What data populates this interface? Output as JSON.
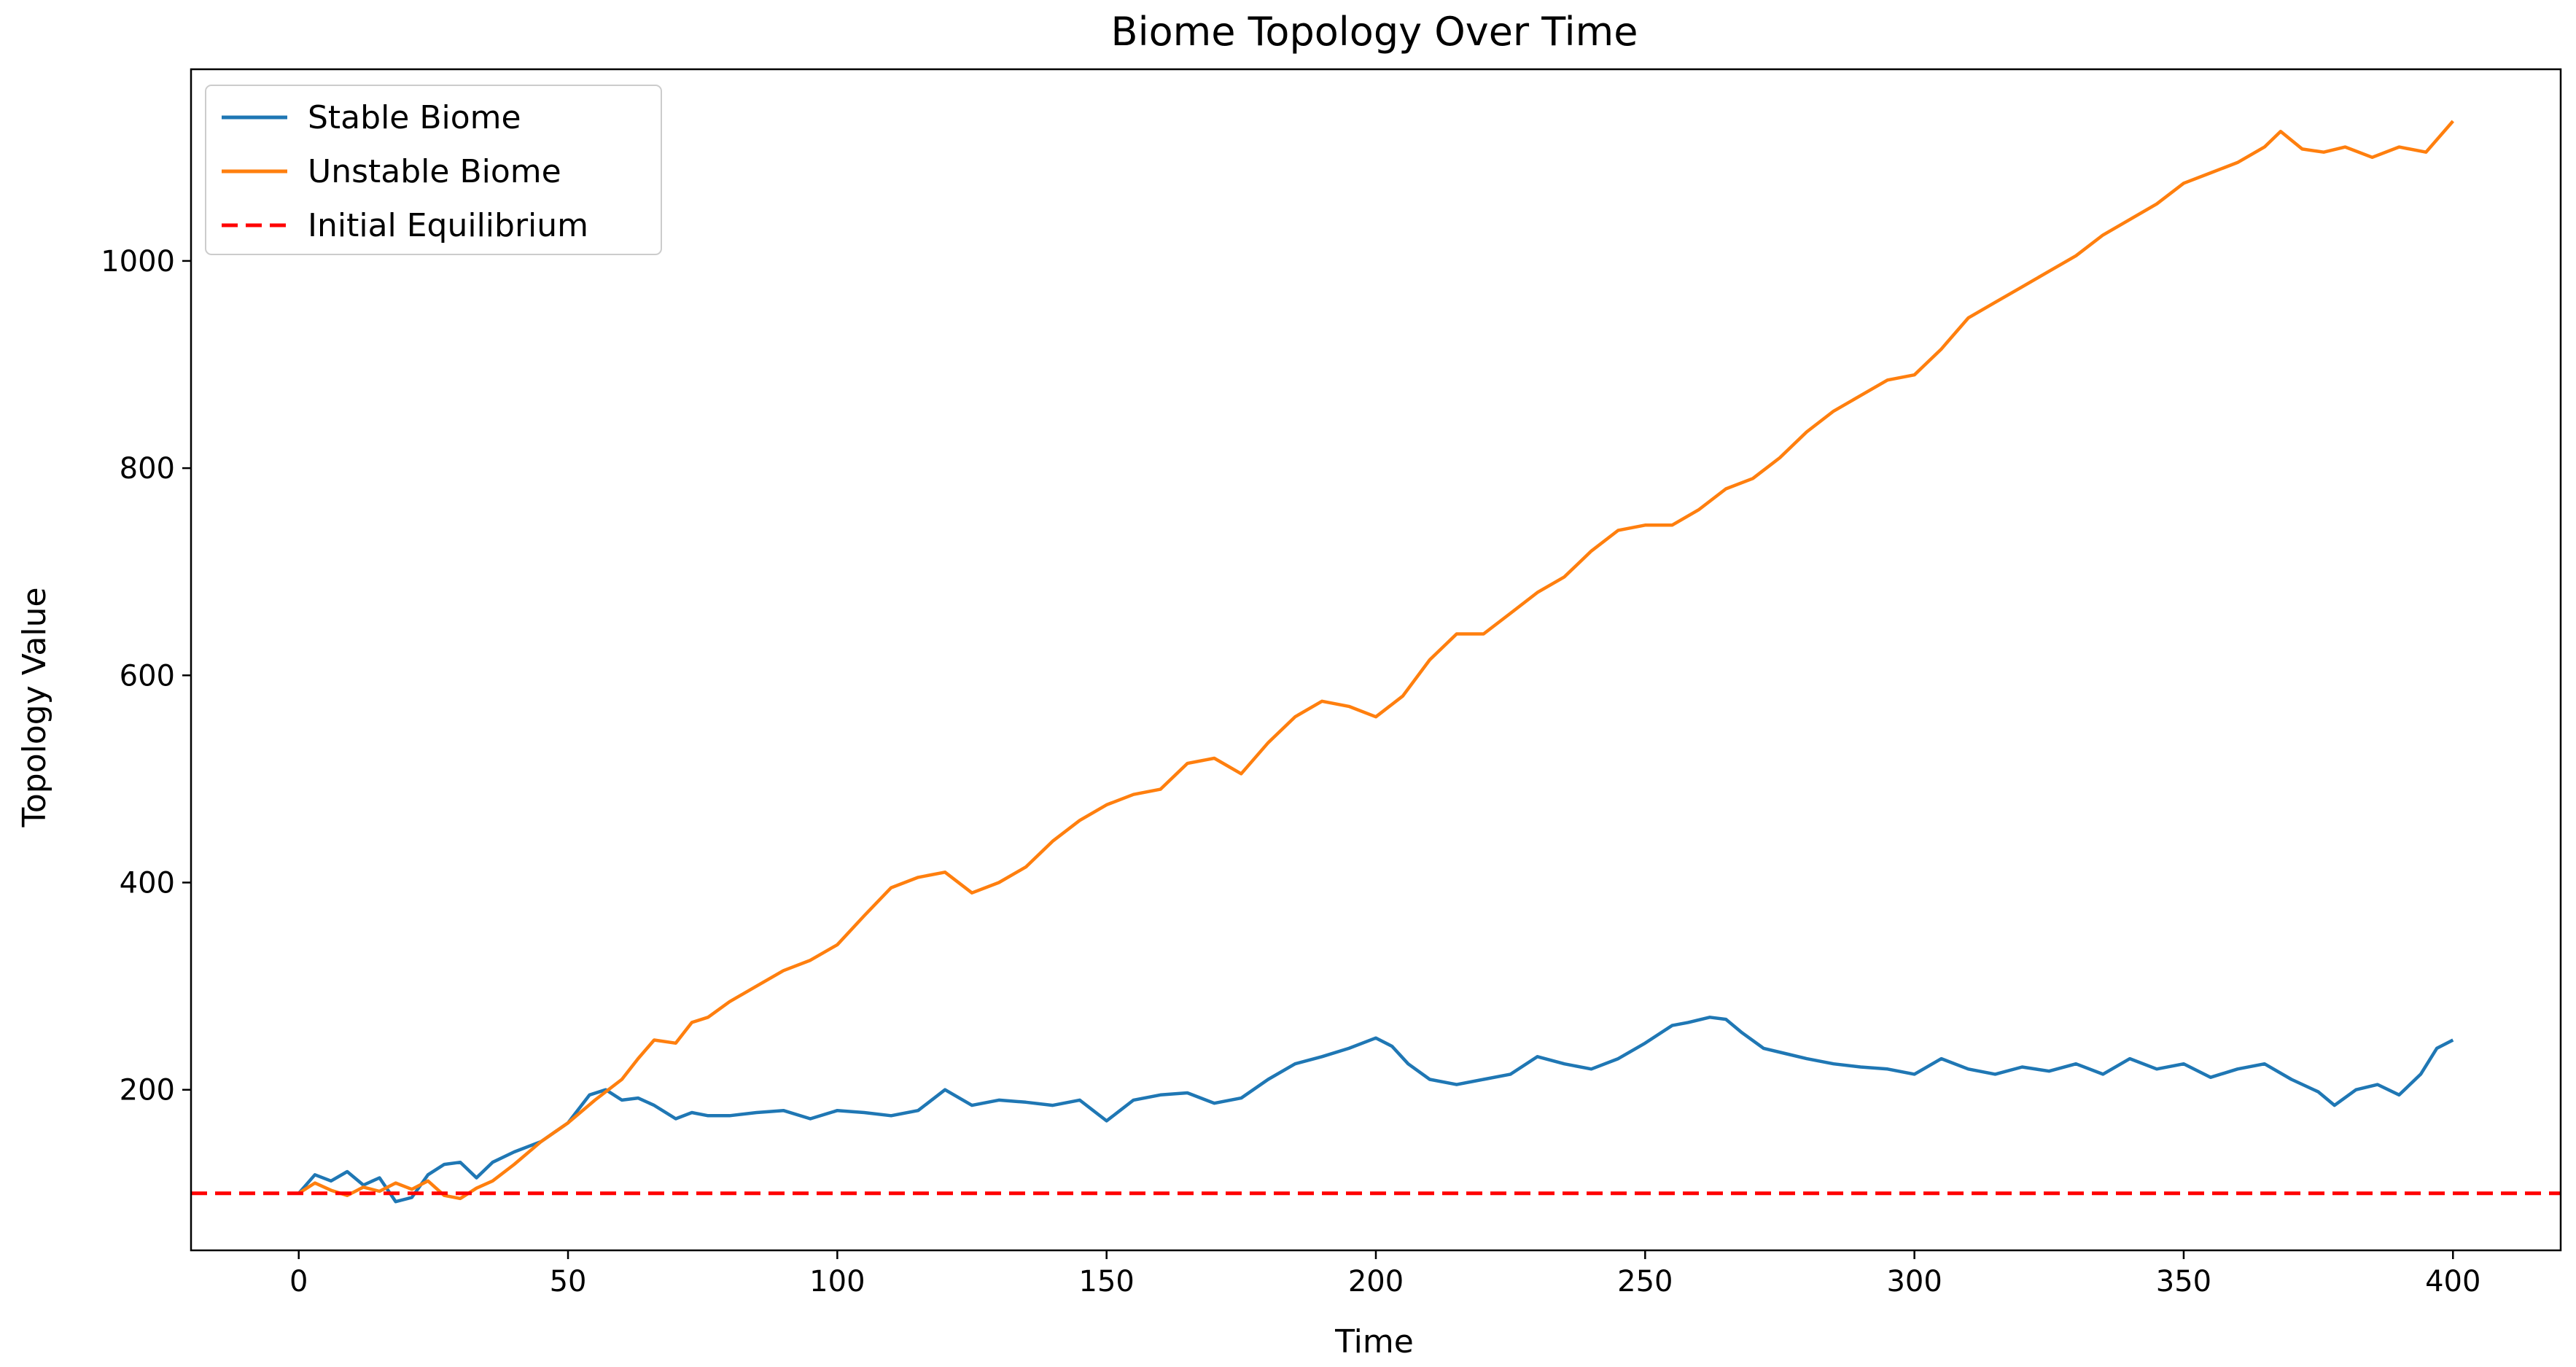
{
  "chart_data": {
    "type": "line",
    "title": "Biome Topology Over Time",
    "xlabel": "Time",
    "ylabel": "Topology Value",
    "xlim": [
      -20,
      420
    ],
    "ylim": [
      45,
      1185
    ],
    "xticks": [
      0,
      50,
      100,
      150,
      200,
      250,
      300,
      350,
      400
    ],
    "yticks": [
      200,
      400,
      600,
      800,
      1000
    ],
    "grid": false,
    "legend_position": "top-left",
    "series": [
      {
        "name": "Stable Biome",
        "color": "#1f77b4",
        "style": "solid",
        "x": [
          0,
          3,
          6,
          9,
          12,
          15,
          18,
          21,
          24,
          27,
          30,
          33,
          36,
          40,
          45,
          50,
          54,
          57,
          60,
          63,
          66,
          70,
          73,
          76,
          80,
          85,
          90,
          95,
          100,
          105,
          110,
          115,
          120,
          125,
          130,
          135,
          140,
          145,
          150,
          155,
          160,
          165,
          170,
          175,
          180,
          185,
          190,
          195,
          200,
          203,
          206,
          210,
          215,
          220,
          225,
          230,
          235,
          240,
          245,
          250,
          255,
          258,
          262,
          265,
          268,
          272,
          276,
          280,
          285,
          290,
          295,
          300,
          305,
          310,
          315,
          320,
          325,
          330,
          335,
          340,
          345,
          350,
          355,
          360,
          365,
          370,
          375,
          378,
          382,
          386,
          390,
          394,
          397,
          400
        ],
        "y": [
          100,
          118,
          112,
          121,
          108,
          115,
          92,
          96,
          118,
          128,
          130,
          115,
          130,
          140,
          150,
          168,
          195,
          200,
          190,
          192,
          185,
          172,
          178,
          175,
          175,
          178,
          180,
          172,
          180,
          178,
          175,
          180,
          200,
          185,
          190,
          188,
          185,
          190,
          170,
          190,
          195,
          197,
          187,
          192,
          210,
          225,
          232,
          240,
          250,
          242,
          225,
          210,
          205,
          210,
          215,
          232,
          225,
          220,
          230,
          245,
          262,
          265,
          270,
          268,
          255,
          240,
          235,
          230,
          225,
          222,
          220,
          215,
          230,
          220,
          215,
          222,
          218,
          225,
          215,
          230,
          220,
          225,
          212,
          220,
          225,
          210,
          198,
          185,
          200,
          205,
          195,
          215,
          240,
          248
        ]
      },
      {
        "name": "Unstable Biome",
        "color": "#ff7f0e",
        "style": "solid",
        "x": [
          0,
          3,
          6,
          9,
          12,
          15,
          18,
          21,
          24,
          27,
          30,
          33,
          36,
          40,
          45,
          50,
          55,
          60,
          63,
          66,
          70,
          73,
          76,
          80,
          85,
          90,
          95,
          100,
          105,
          110,
          115,
          120,
          125,
          130,
          135,
          140,
          145,
          150,
          155,
          160,
          165,
          170,
          175,
          180,
          185,
          190,
          195,
          200,
          205,
          210,
          215,
          220,
          225,
          230,
          235,
          240,
          245,
          250,
          255,
          260,
          265,
          270,
          275,
          280,
          285,
          290,
          295,
          300,
          305,
          310,
          315,
          320,
          325,
          330,
          335,
          340,
          345,
          350,
          355,
          360,
          365,
          368,
          372,
          376,
          380,
          385,
          390,
          395,
          400
        ],
        "y": [
          100,
          110,
          103,
          98,
          106,
          102,
          110,
          104,
          112,
          98,
          95,
          105,
          112,
          128,
          150,
          168,
          190,
          210,
          230,
          248,
          245,
          265,
          270,
          285,
          300,
          315,
          325,
          340,
          368,
          395,
          405,
          410,
          390,
          400,
          415,
          440,
          460,
          475,
          485,
          490,
          515,
          520,
          505,
          535,
          560,
          575,
          570,
          560,
          580,
          615,
          640,
          640,
          660,
          680,
          695,
          720,
          740,
          745,
          745,
          760,
          780,
          790,
          810,
          835,
          855,
          870,
          885,
          890,
          915,
          945,
          960,
          975,
          990,
          1005,
          1025,
          1040,
          1055,
          1075,
          1085,
          1095,
          1110,
          1125,
          1108,
          1105,
          1110,
          1100,
          1110,
          1105,
          1135
        ]
      },
      {
        "name": "Initial Equilibrium",
        "color": "#ff0000",
        "style": "dashed",
        "x": [
          -20,
          420
        ],
        "y": [
          100,
          100
        ]
      }
    ]
  }
}
